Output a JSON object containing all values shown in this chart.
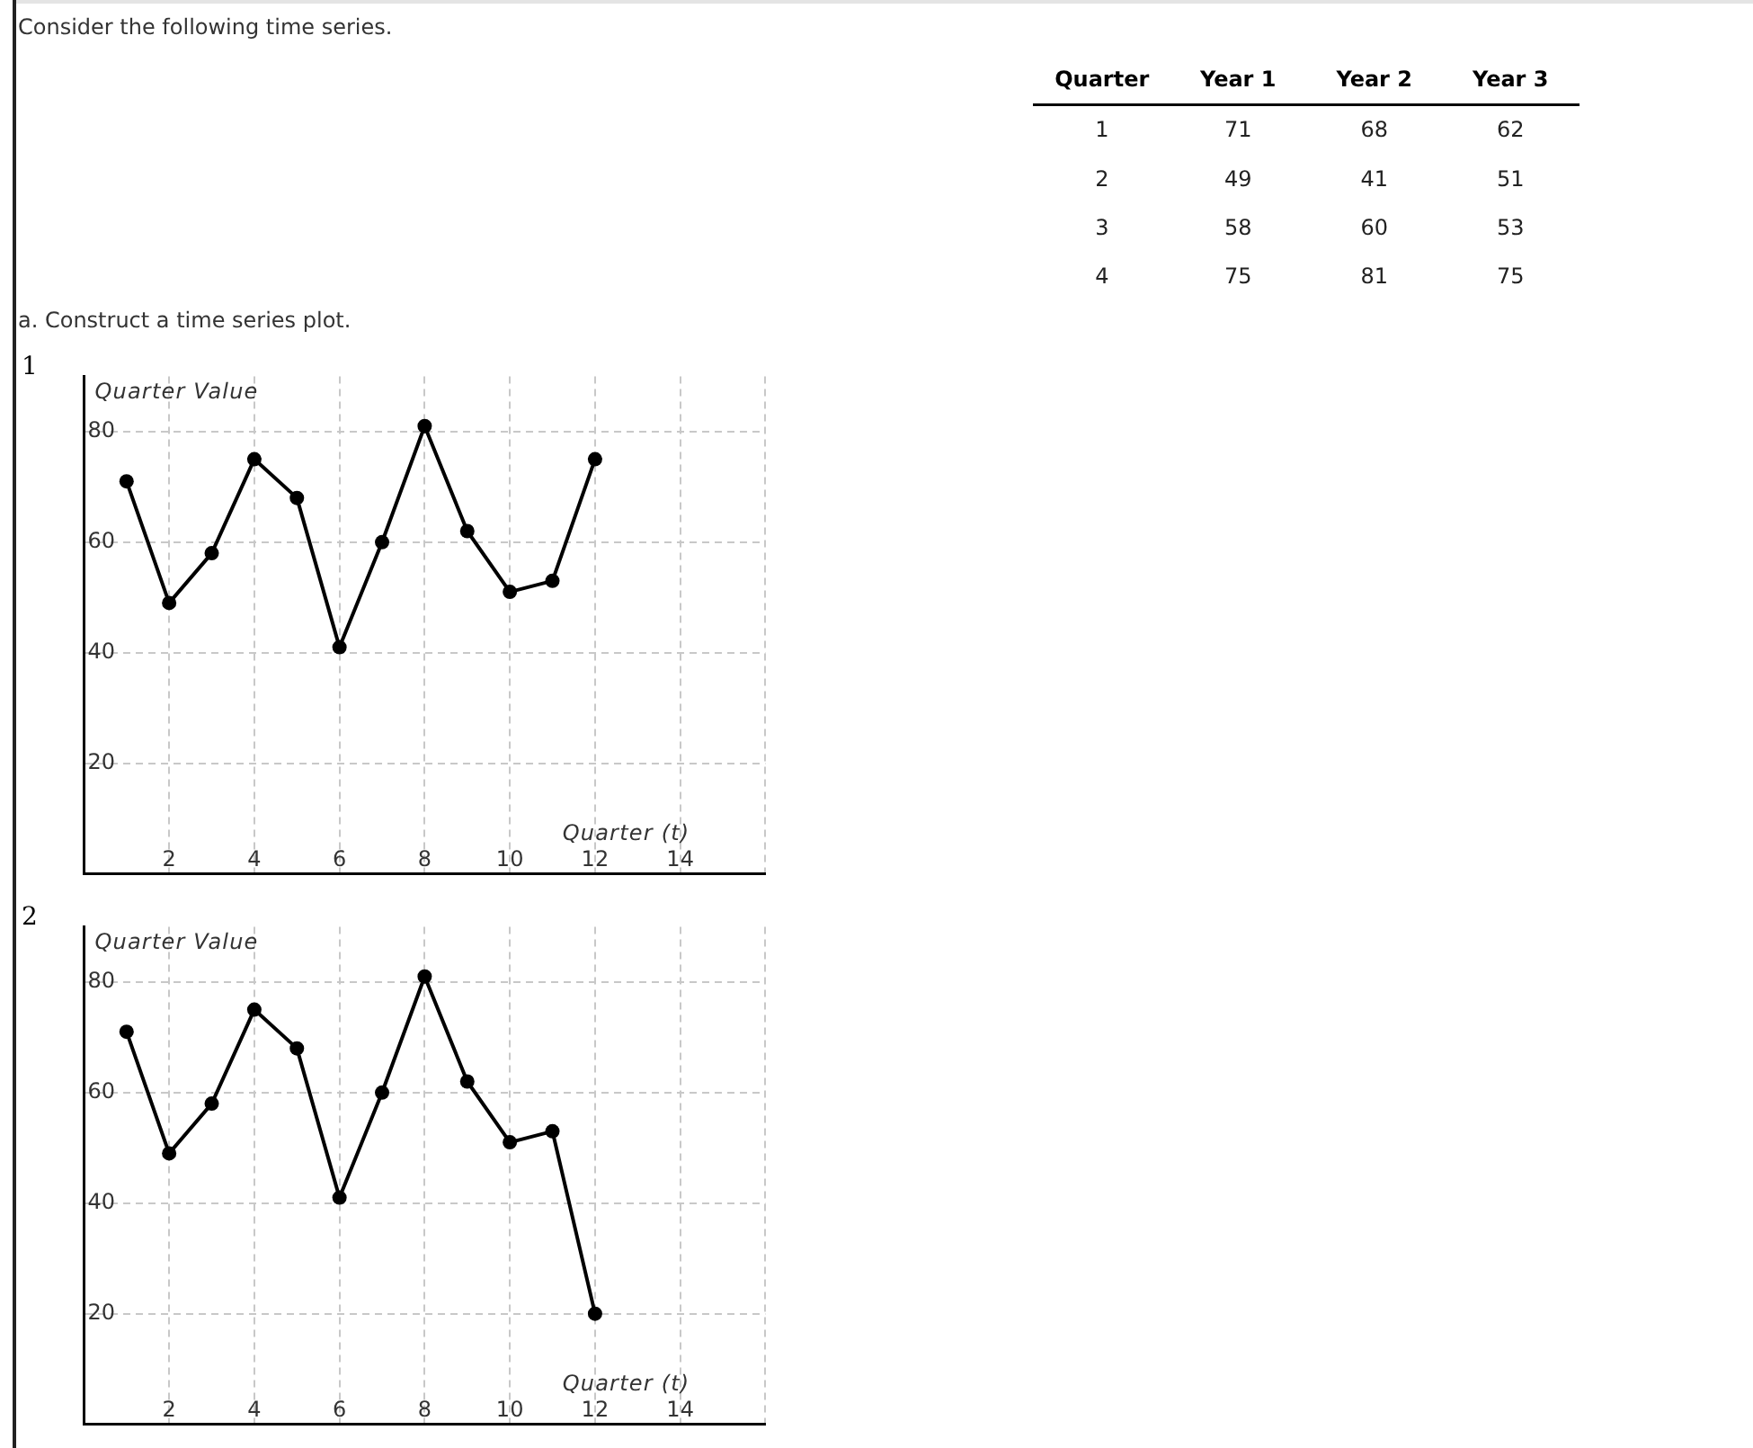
{
  "chart_data": [
    {
      "type": "heatmap",
      "ylabel": "Quarter",
      "categories": [
        "Year 1",
        "Year 2",
        "Year 3"
      ],
      "y_categories": [
        "1",
        "2",
        "3",
        "4"
      ],
      "cells": [
        [
          71,
          68,
          62
        ],
        [
          49,
          41,
          51
        ],
        [
          58,
          60,
          53
        ],
        [
          75,
          81,
          75
        ]
      ],
      "data_labels": true
    },
    {
      "type": "line",
      "title": "Consider the following time series.",
      "subtitle": "a. Construct a time series plot.",
      "annotations": [
        "1"
      ],
      "xlabel": "Quarter (t)",
      "ylabel": "Quarter Value",
      "x": [
        1,
        2,
        3,
        4,
        5,
        6,
        7,
        8,
        9,
        10,
        11,
        12
      ],
      "series": [
        {
          "color": "#000000",
          "values": [
            71,
            49,
            58,
            75,
            68,
            41,
            60,
            81,
            62,
            51,
            53,
            75
          ]
        }
      ],
      "xlim": [
        0,
        16
      ],
      "ylim": [
        0,
        90
      ],
      "xticks": [
        2,
        4,
        6,
        8,
        10,
        12,
        14,
        {
          "value": 16,
          "label": null
        }
      ],
      "yticks": [
        20,
        40,
        60,
        80
      ],
      "grid": true,
      "marker": "circle",
      "line_style": "solid"
    },
    {
      "type": "line",
      "annotations": [
        "2"
      ],
      "xlabel": "Quarter (t)",
      "ylabel": "Quarter Value",
      "x": [
        1,
        2,
        3,
        4,
        5,
        6,
        7,
        8,
        9,
        10,
        11,
        12
      ],
      "series": [
        {
          "color": "#000000",
          "values": [
            71,
            49,
            58,
            75,
            68,
            41,
            60,
            81,
            62,
            51,
            53,
            20
          ]
        }
      ],
      "xlim": [
        0,
        16
      ],
      "ylim": [
        0,
        90
      ],
      "xticks": [
        2,
        4,
        6,
        8,
        10,
        12,
        14,
        {
          "value": 16,
          "label": null
        }
      ],
      "yticks": [
        20,
        40,
        60,
        80
      ],
      "grid": true,
      "marker": "circle",
      "line_style": "solid"
    }
  ]
}
